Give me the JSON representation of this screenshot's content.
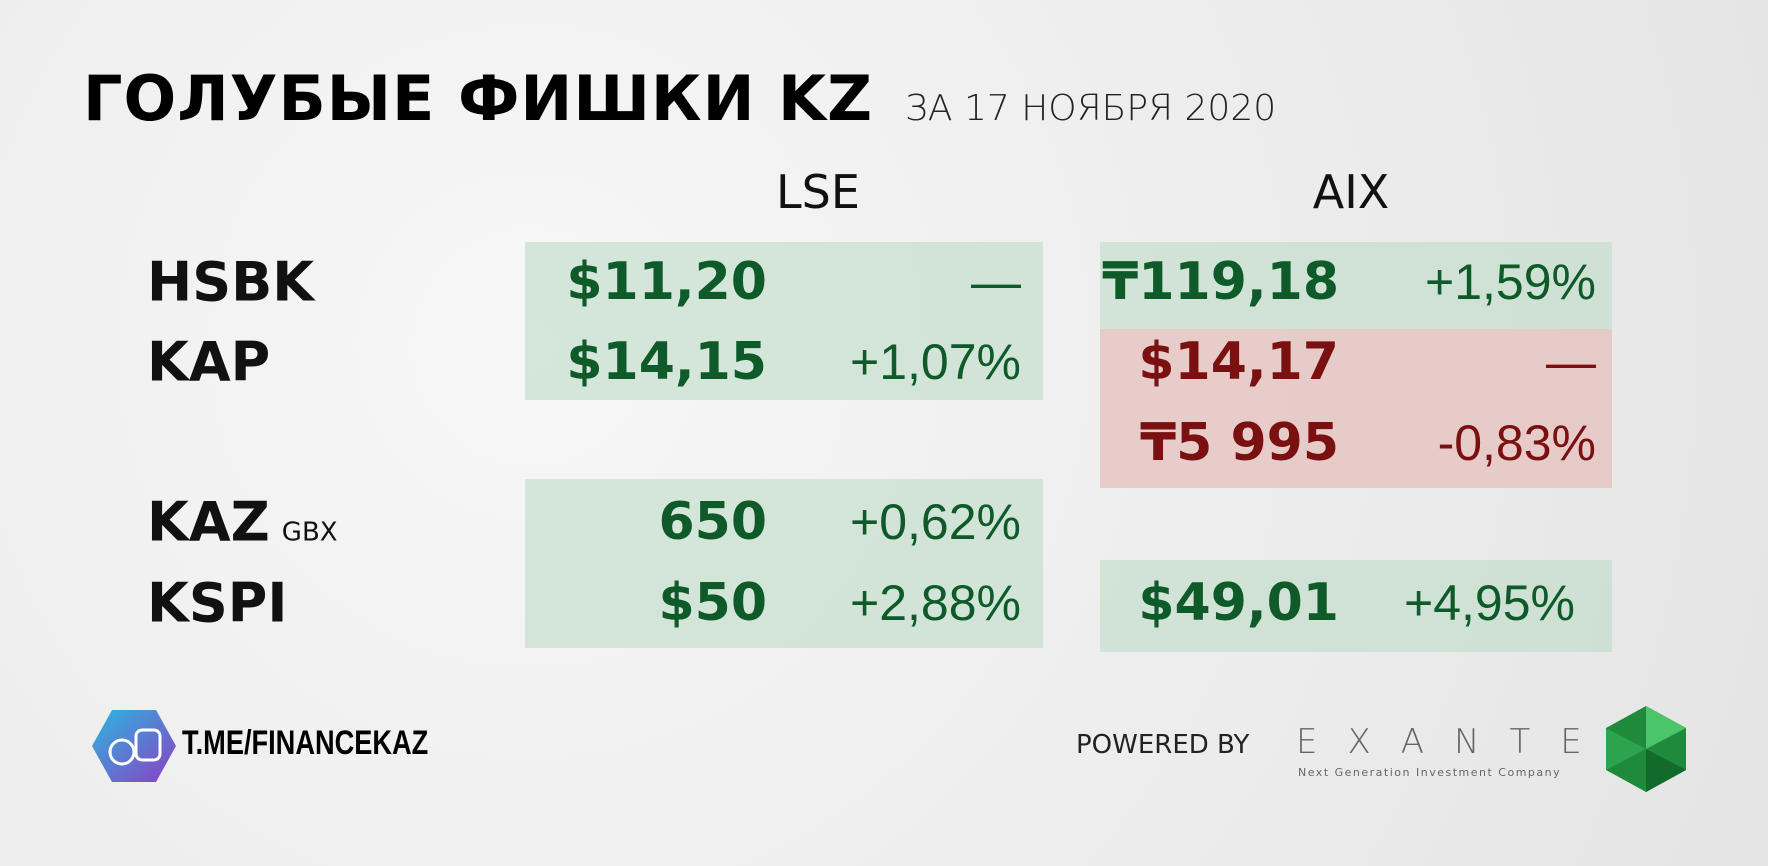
{
  "header": {
    "title": "ГОЛУБЫЕ ФИШКИ KZ",
    "subtitle": "ЗА 17 НОЯБРЯ 2020"
  },
  "columns": [
    "LSE",
    "AIX"
  ],
  "rows": [
    {
      "ticker": "HSBK",
      "lse_price": "$11,20",
      "lse_change": "—",
      "aix_price": "₸119,18",
      "aix_change": "+1,59%"
    },
    {
      "ticker": "KAP",
      "lse_price": "$14,15",
      "lse_change": "+1,07%",
      "aix_price": "$14,17",
      "aix_change": "—"
    },
    {
      "aix_price": "₸5 995",
      "aix_change": "-0,83%"
    },
    {
      "ticker": "KAZ",
      "note": "GBX",
      "lse_price": "650",
      "lse_change": "+0,62%"
    },
    {
      "ticker": "KSPI",
      "lse_price": "$50",
      "lse_change": "+2,88%",
      "aix_price": "$49,01",
      "aix_change": "+4,95%"
    }
  ],
  "footer": {
    "channel": "T.ME/FINANCEKAZ",
    "powered_by": "POWERED BY",
    "brand": "EXANTE",
    "brand_tagline": "Next Generation Investment Company"
  }
}
